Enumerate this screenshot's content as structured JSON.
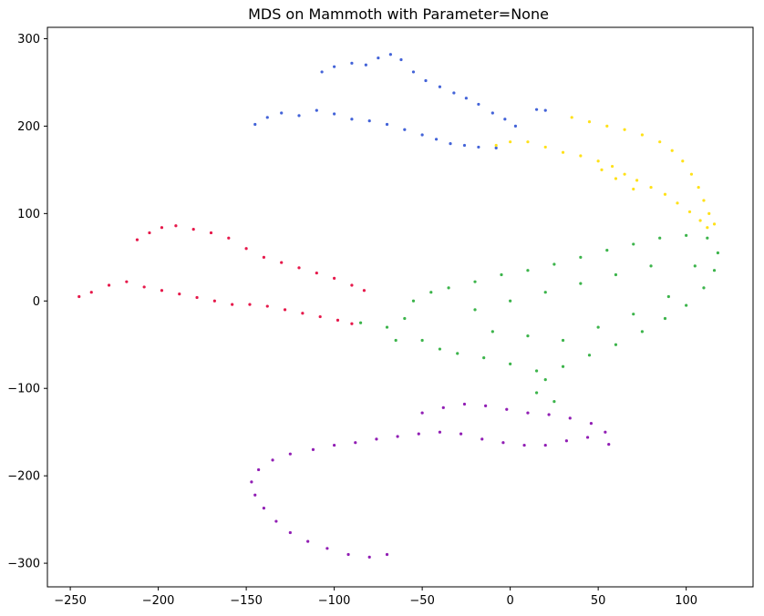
{
  "chart_data": {
    "type": "scatter",
    "title": "MDS on Mammoth with Parameter=None",
    "xlabel": "",
    "ylabel": "",
    "xlim": [
      -263,
      138
    ],
    "ylim": [
      -327,
      313
    ],
    "xticks": [
      -250,
      -200,
      -150,
      -100,
      -50,
      0,
      50,
      100
    ],
    "yticks": [
      -300,
      -200,
      -100,
      0,
      100,
      200,
      300
    ],
    "xtick_labels": [
      "−250",
      "−200",
      "−150",
      "−100",
      "−50",
      "0",
      "50",
      "100"
    ],
    "ytick_labels": [
      "−300",
      "−200",
      "−100",
      "0",
      "100",
      "200",
      "300"
    ],
    "grid": false,
    "legend": "none",
    "marker": "dot",
    "series": [
      {
        "color": "#4363d8",
        "region": "upper tusk-like arcs",
        "x_range": [
          -146,
          15
        ],
        "y_range": [
          165,
          283
        ],
        "points": [
          [
            -107,
            262
          ],
          [
            -100,
            268
          ],
          [
            -90,
            272
          ],
          [
            -82,
            270
          ],
          [
            -75,
            278
          ],
          [
            -68,
            282
          ],
          [
            -62,
            276
          ],
          [
            -55,
            262
          ],
          [
            -48,
            252
          ],
          [
            -40,
            245
          ],
          [
            -32,
            238
          ],
          [
            -25,
            232
          ],
          [
            -18,
            225
          ],
          [
            -10,
            215
          ],
          [
            -3,
            208
          ],
          [
            3,
            200
          ],
          [
            -145,
            202
          ],
          [
            -138,
            210
          ],
          [
            -130,
            215
          ],
          [
            -120,
            212
          ],
          [
            -110,
            218
          ],
          [
            -100,
            214
          ],
          [
            -90,
            208
          ],
          [
            -80,
            206
          ],
          [
            -70,
            202
          ],
          [
            -60,
            196
          ],
          [
            -50,
            190
          ],
          [
            -42,
            185
          ],
          [
            -34,
            180
          ],
          [
            -26,
            178
          ],
          [
            -18,
            176
          ],
          [
            -8,
            175
          ],
          [
            15,
            219
          ],
          [
            20,
            218
          ]
        ]
      },
      {
        "color": "#ffe119",
        "region": "upper-right crescent",
        "x_range": [
          -10,
          118
        ],
        "y_range": [
          78,
          218
        ],
        "points": [
          [
            -8,
            178
          ],
          [
            0,
            182
          ],
          [
            10,
            182
          ],
          [
            20,
            176
          ],
          [
            30,
            170
          ],
          [
            40,
            166
          ],
          [
            50,
            160
          ],
          [
            58,
            154
          ],
          [
            65,
            145
          ],
          [
            72,
            138
          ],
          [
            80,
            130
          ],
          [
            88,
            122
          ],
          [
            95,
            112
          ],
          [
            102,
            102
          ],
          [
            108,
            92
          ],
          [
            112,
            84
          ],
          [
            35,
            210
          ],
          [
            45,
            205
          ],
          [
            55,
            200
          ],
          [
            65,
            196
          ],
          [
            75,
            190
          ],
          [
            85,
            182
          ],
          [
            92,
            172
          ],
          [
            98,
            160
          ],
          [
            103,
            145
          ],
          [
            107,
            130
          ],
          [
            110,
            115
          ],
          [
            113,
            100
          ],
          [
            116,
            88
          ],
          [
            60,
            140
          ],
          [
            70,
            128
          ],
          [
            52,
            150
          ]
        ]
      },
      {
        "color": "#e6194b",
        "region": "left trunk-like arcs",
        "x_range": [
          -246,
          -80
        ],
        "y_range": [
          -30,
          90
        ],
        "points": [
          [
            -212,
            70
          ],
          [
            -205,
            78
          ],
          [
            -198,
            84
          ],
          [
            -190,
            86
          ],
          [
            -180,
            82
          ],
          [
            -170,
            78
          ],
          [
            -160,
            72
          ],
          [
            -150,
            60
          ],
          [
            -140,
            50
          ],
          [
            -130,
            44
          ],
          [
            -120,
            38
          ],
          [
            -110,
            32
          ],
          [
            -100,
            26
          ],
          [
            -90,
            18
          ],
          [
            -83,
            12
          ],
          [
            -245,
            5
          ],
          [
            -238,
            10
          ],
          [
            -228,
            18
          ],
          [
            -218,
            22
          ],
          [
            -208,
            16
          ],
          [
            -198,
            12
          ],
          [
            -188,
            8
          ],
          [
            -178,
            4
          ],
          [
            -168,
            0
          ],
          [
            -158,
            -4
          ],
          [
            -148,
            -4
          ],
          [
            -138,
            -6
          ],
          [
            -128,
            -10
          ],
          [
            -118,
            -14
          ],
          [
            -108,
            -18
          ],
          [
            -98,
            -22
          ],
          [
            -90,
            -26
          ]
        ]
      },
      {
        "color": "#3cb44b",
        "region": "central body cloud",
        "x_range": [
          -90,
          120
        ],
        "y_range": [
          -120,
          80
        ],
        "points": [
          [
            -85,
            -25
          ],
          [
            -70,
            -30
          ],
          [
            -60,
            -20
          ],
          [
            -55,
            0
          ],
          [
            -45,
            10
          ],
          [
            -35,
            15
          ],
          [
            -20,
            22
          ],
          [
            -5,
            30
          ],
          [
            10,
            35
          ],
          [
            25,
            42
          ],
          [
            40,
            50
          ],
          [
            55,
            58
          ],
          [
            70,
            65
          ],
          [
            85,
            72
          ],
          [
            100,
            75
          ],
          [
            112,
            72
          ],
          [
            118,
            55
          ],
          [
            116,
            35
          ],
          [
            110,
            15
          ],
          [
            100,
            -5
          ],
          [
            88,
            -20
          ],
          [
            75,
            -35
          ],
          [
            60,
            -50
          ],
          [
            45,
            -62
          ],
          [
            30,
            -75
          ],
          [
            20,
            -90
          ],
          [
            15,
            -105
          ],
          [
            25,
            -115
          ],
          [
            -50,
            -45
          ],
          [
            -40,
            -55
          ],
          [
            -30,
            -60
          ],
          [
            -15,
            -65
          ],
          [
            0,
            -72
          ],
          [
            15,
            -80
          ],
          [
            -20,
            -10
          ],
          [
            0,
            0
          ],
          [
            20,
            10
          ],
          [
            40,
            20
          ],
          [
            60,
            30
          ],
          [
            80,
            40
          ],
          [
            -10,
            -35
          ],
          [
            10,
            -40
          ],
          [
            30,
            -45
          ],
          [
            50,
            -30
          ],
          [
            70,
            -15
          ],
          [
            90,
            5
          ],
          [
            105,
            40
          ],
          [
            -65,
            -45
          ]
        ]
      },
      {
        "color": "#911eb4",
        "region": "lower leg/tail arc",
        "x_range": [
          -148,
          60
        ],
        "y_range": [
          -297,
          -108
        ],
        "points": [
          [
            -70,
            -290
          ],
          [
            -80,
            -293
          ],
          [
            -92,
            -290
          ],
          [
            -104,
            -283
          ],
          [
            -115,
            -275
          ],
          [
            -125,
            -265
          ],
          [
            -133,
            -252
          ],
          [
            -140,
            -237
          ],
          [
            -145,
            -222
          ],
          [
            -147,
            -207
          ],
          [
            -143,
            -193
          ],
          [
            -135,
            -182
          ],
          [
            -125,
            -175
          ],
          [
            -112,
            -170
          ],
          [
            -100,
            -165
          ],
          [
            -88,
            -162
          ],
          [
            -76,
            -158
          ],
          [
            -64,
            -155
          ],
          [
            -52,
            -152
          ],
          [
            -40,
            -150
          ],
          [
            -28,
            -152
          ],
          [
            -16,
            -158
          ],
          [
            -4,
            -162
          ],
          [
            8,
            -165
          ],
          [
            20,
            -165
          ],
          [
            32,
            -160
          ],
          [
            44,
            -156
          ],
          [
            56,
            -164
          ],
          [
            -50,
            -128
          ],
          [
            -38,
            -122
          ],
          [
            -26,
            -118
          ],
          [
            -14,
            -120
          ],
          [
            -2,
            -124
          ],
          [
            10,
            -128
          ],
          [
            22,
            -130
          ],
          [
            34,
            -134
          ],
          [
            46,
            -140
          ],
          [
            54,
            -150
          ]
        ]
      }
    ]
  }
}
